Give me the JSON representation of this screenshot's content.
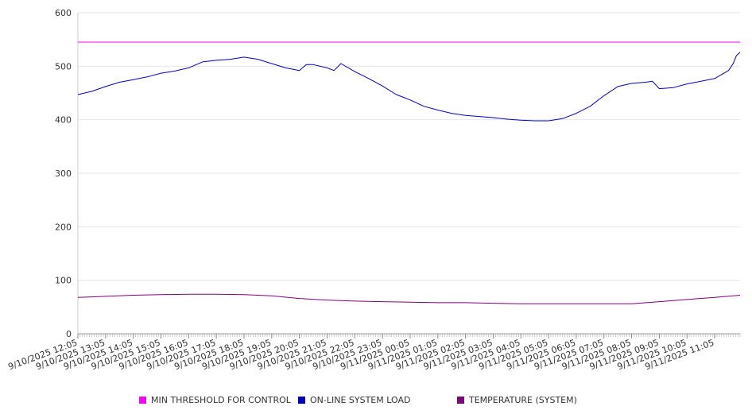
{
  "chart_data": {
    "type": "line",
    "ylim": [
      0,
      600
    ],
    "yticks": [
      0,
      100,
      200,
      300,
      400,
      500,
      600
    ],
    "grid": true,
    "legend_position": "bottom",
    "x_tick_labels": [
      "9/10/2025 12:05",
      "9/10/2025 13:05",
      "9/10/2025 14:05",
      "9/10/2025 15:05",
      "9/10/2025 16:05",
      "9/10/2025 17:05",
      "9/10/2025 18:05",
      "9/10/2025 19:05",
      "9/10/2025 20:05",
      "9/10/2025 21:05",
      "9/10/2025 22:05",
      "9/10/2025 23:05",
      "9/11/2025 00:05",
      "9/11/2025 01:05",
      "9/11/2025 02:05",
      "9/11/2025 03:05",
      "9/11/2025 04:05",
      "9/11/2025 05:05",
      "9/11/2025 06:05",
      "9/11/2025 07:05",
      "9/11/2025 08:05",
      "9/11/2025 09:05",
      "9/11/2025 10:05",
      "9/11/2025 11:05"
    ],
    "series": [
      {
        "name": "MIN THRESHOLD FOR CONTROL",
        "color": "#ff00ff",
        "points": [
          [
            "9/10/2025 12:05",
            545
          ],
          [
            "9/11/2025 12:00",
            545
          ]
        ]
      },
      {
        "name": "ON-LINE SYSTEM LOAD",
        "color": "#0000cc",
        "points": [
          [
            "9/10/2025 12:05",
            447
          ],
          [
            "9/10/2025 12:35",
            453
          ],
          [
            "9/10/2025 13:05",
            462
          ],
          [
            "9/10/2025 13:35",
            470
          ],
          [
            "9/10/2025 14:05",
            475
          ],
          [
            "9/10/2025 14:35",
            480
          ],
          [
            "9/10/2025 15:05",
            487
          ],
          [
            "9/10/2025 15:35",
            491
          ],
          [
            "9/10/2025 16:05",
            497
          ],
          [
            "9/10/2025 16:35",
            508
          ],
          [
            "9/10/2025 17:05",
            511
          ],
          [
            "9/10/2025 17:35",
            513
          ],
          [
            "9/10/2025 18:05",
            517
          ],
          [
            "9/10/2025 18:35",
            513
          ],
          [
            "9/10/2025 19:05",
            505
          ],
          [
            "9/10/2025 19:35",
            497
          ],
          [
            "9/10/2025 20:05",
            492
          ],
          [
            "9/10/2025 20:20",
            503
          ],
          [
            "9/10/2025 20:35",
            503
          ],
          [
            "9/10/2025 21:05",
            497
          ],
          [
            "9/10/2025 21:20",
            492
          ],
          [
            "9/10/2025 21:35",
            505
          ],
          [
            "9/10/2025 22:05",
            490
          ],
          [
            "9/10/2025 22:35",
            477
          ],
          [
            "9/10/2025 23:05",
            463
          ],
          [
            "9/10/2025 23:35",
            447
          ],
          [
            "9/11/2025 00:05",
            437
          ],
          [
            "9/11/2025 00:35",
            425
          ],
          [
            "9/11/2025 01:05",
            418
          ],
          [
            "9/11/2025 01:35",
            412
          ],
          [
            "9/11/2025 02:05",
            408
          ],
          [
            "9/11/2025 02:35",
            406
          ],
          [
            "9/11/2025 03:05",
            404
          ],
          [
            "9/11/2025 03:35",
            401
          ],
          [
            "9/11/2025 04:05",
            399
          ],
          [
            "9/11/2025 04:35",
            398
          ],
          [
            "9/11/2025 05:05",
            398
          ],
          [
            "9/11/2025 05:35",
            402
          ],
          [
            "9/11/2025 06:05",
            412
          ],
          [
            "9/11/2025 06:35",
            425
          ],
          [
            "9/11/2025 07:05",
            445
          ],
          [
            "9/11/2025 07:35",
            462
          ],
          [
            "9/11/2025 08:05",
            468
          ],
          [
            "9/11/2025 08:35",
            470
          ],
          [
            "9/11/2025 08:50",
            472
          ],
          [
            "9/11/2025 09:05",
            458
          ],
          [
            "9/11/2025 09:35",
            460
          ],
          [
            "9/11/2025 10:05",
            467
          ],
          [
            "9/11/2025 10:35",
            472
          ],
          [
            "9/11/2025 11:05",
            477
          ],
          [
            "9/11/2025 11:35",
            492
          ],
          [
            "9/11/2025 11:45",
            505
          ],
          [
            "9/11/2025 11:52",
            520
          ],
          [
            "9/11/2025 12:00",
            526
          ]
        ]
      },
      {
        "name": "TEMPERATURE (SYSTEM)",
        "color": "#800080",
        "points": [
          [
            "9/10/2025 12:05",
            68
          ],
          [
            "9/10/2025 13:05",
            70
          ],
          [
            "9/10/2025 14:05",
            72
          ],
          [
            "9/10/2025 15:05",
            73
          ],
          [
            "9/10/2025 16:05",
            74
          ],
          [
            "9/10/2025 17:05",
            74
          ],
          [
            "9/10/2025 18:05",
            73
          ],
          [
            "9/10/2025 19:05",
            71
          ],
          [
            "9/10/2025 20:05",
            66
          ],
          [
            "9/10/2025 21:05",
            63
          ],
          [
            "9/10/2025 22:05",
            61
          ],
          [
            "9/10/2025 23:05",
            60
          ],
          [
            "9/11/2025 00:05",
            59
          ],
          [
            "9/11/2025 01:05",
            58
          ],
          [
            "9/11/2025 02:05",
            58
          ],
          [
            "9/11/2025 03:05",
            57
          ],
          [
            "9/11/2025 04:05",
            56
          ],
          [
            "9/11/2025 05:05",
            56
          ],
          [
            "9/11/2025 06:05",
            56
          ],
          [
            "9/11/2025 07:05",
            56
          ],
          [
            "9/11/2025 08:05",
            56
          ],
          [
            "9/11/2025 09:05",
            60
          ],
          [
            "9/11/2025 10:05",
            64
          ],
          [
            "9/11/2025 11:05",
            68
          ],
          [
            "9/11/2025 12:00",
            72
          ]
        ]
      }
    ]
  }
}
